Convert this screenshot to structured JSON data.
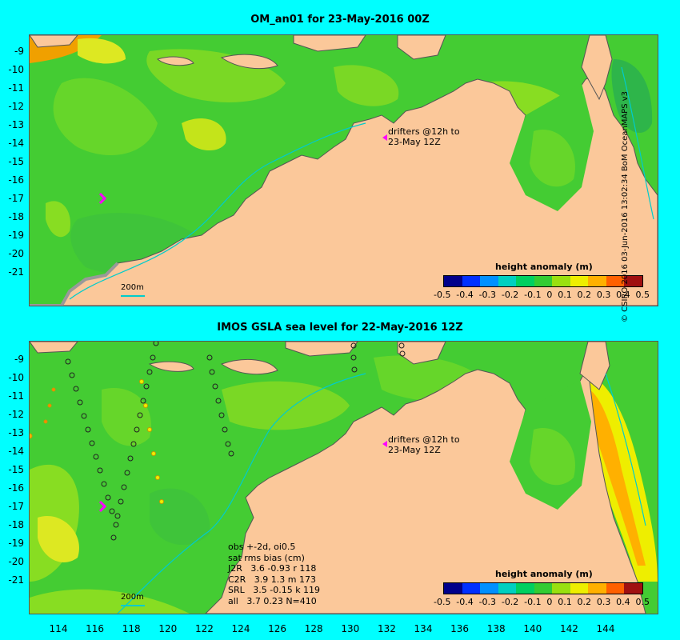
{
  "top_panel": {
    "title": "OM_an01 for 23-May-2016 00Z",
    "drifters_note_line1": "drifters @12h to",
    "drifters_note_line2": "23-May 12Z",
    "scale_label": "200m",
    "colorbar_title": "height anomaly (m)"
  },
  "bottom_panel": {
    "title": "IMOS GSLA sea level  for 22-May-2016 12Z",
    "drifters_note_line1": "drifters @12h to",
    "drifters_note_line2": "23-May 12Z",
    "scale_label": "200m",
    "colorbar_title": "height anomaly (m)",
    "stats": {
      "line1": "obs +-2d, oi0.5",
      "line2": "sat rms bias (cm)",
      "line3": "J2R   3.6 -0.93 r 118",
      "line4": "C2R   3.9 1.3 m 173",
      "line5": "SRL   3.5 -0.15 k 119",
      "line6": "all   3.7 0.23 N=410"
    }
  },
  "y_axis": [
    "-9",
    "-10",
    "-11",
    "-12",
    "-13",
    "-14",
    "-15",
    "-16",
    "-17",
    "-18",
    "-19",
    "-20",
    "-21"
  ],
  "x_axis": [
    "114",
    "116",
    "118",
    "120",
    "122",
    "124",
    "126",
    "128",
    "130",
    "132",
    "134",
    "136",
    "138",
    "140",
    "142",
    "144"
  ],
  "colorbar_ticks": [
    "-0.5",
    "-0.4",
    "-0.3",
    "-0.2",
    "-0.1",
    "0",
    "0.1",
    "0.2",
    "0.3",
    "0.4",
    "0.5"
  ],
  "colorbar_colors": [
    "#00008b",
    "#0030ff",
    "#0090ff",
    "#00d0c0",
    "#00d060",
    "#33cc33",
    "#99e010",
    "#eeee00",
    "#ffb000",
    "#ff6000",
    "#a01010"
  ],
  "credit": "© CSIRO 2016  03-Jun-2016 13:02:34 BoM OceanMAPS v3",
  "colors": {
    "background": "#00ffff",
    "land": "#fbc89a",
    "ocean_base": "#44cc33",
    "ocean_light": "#88dd22",
    "ocean_yellow": "#dde822",
    "shelf_grey": "#999999",
    "drifter": "#ff00ff",
    "contour_200m": "#00cccc"
  }
}
